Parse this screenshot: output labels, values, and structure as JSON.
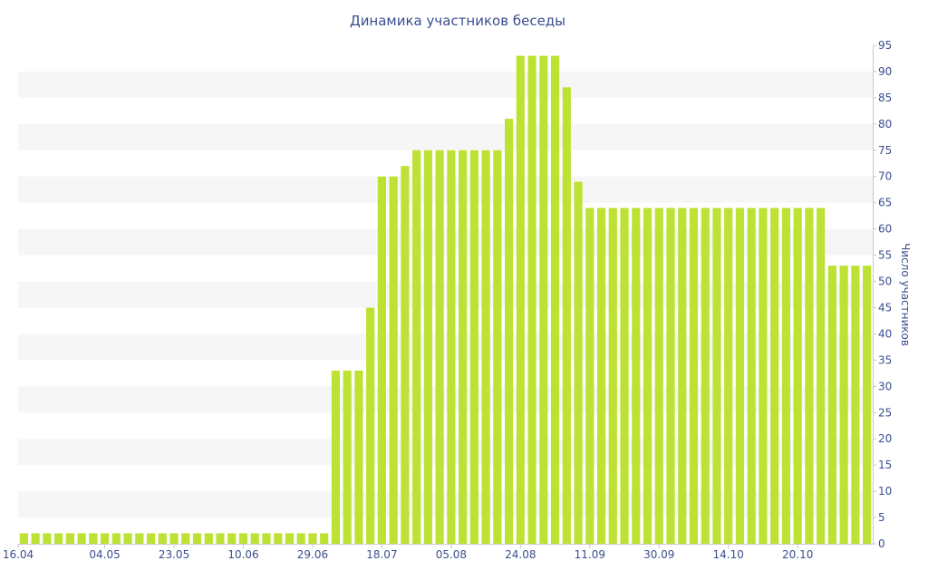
{
  "chart_data": {
    "type": "bar",
    "title": "Динамика участников беседы",
    "ylabel": "Число участников",
    "xlabel": "",
    "ylim": [
      0,
      95
    ],
    "y_ticks": [
      0,
      5,
      10,
      15,
      20,
      25,
      30,
      35,
      40,
      45,
      50,
      55,
      60,
      65,
      70,
      75,
      80,
      85,
      90,
      95
    ],
    "y_axis_position": "right",
    "x_tick_labels": [
      "16.04",
      "04.05",
      "23.05",
      "10.06",
      "29.06",
      "18.07",
      "05.08",
      "24.08",
      "11.09",
      "30.09",
      "14.10",
      "20.10"
    ],
    "x_tick_label_bar_index": [
      0,
      7,
      13,
      19,
      25,
      31,
      37,
      43,
      49,
      55,
      61,
      67
    ],
    "values": [
      2,
      2,
      2,
      2,
      2,
      2,
      2,
      2,
      2,
      2,
      2,
      2,
      2,
      2,
      2,
      2,
      2,
      2,
      2,
      2,
      2,
      2,
      2,
      2,
      2,
      2,
      2,
      33,
      33,
      33,
      45,
      70,
      70,
      72,
      75,
      75,
      75,
      75,
      75,
      75,
      75,
      75,
      81,
      93,
      93,
      93,
      93,
      87,
      69,
      64,
      64,
      64,
      64,
      64,
      64,
      64,
      64,
      64,
      64,
      64,
      64,
      64,
      64,
      64,
      64,
      64,
      64,
      64,
      64,
      64,
      53,
      53,
      53,
      53
    ],
    "colors": {
      "bar": "#bde234",
      "text": "#3a4f8f",
      "band": "#f6f6f6"
    },
    "grid": "alternating-bands",
    "legend": "none"
  }
}
